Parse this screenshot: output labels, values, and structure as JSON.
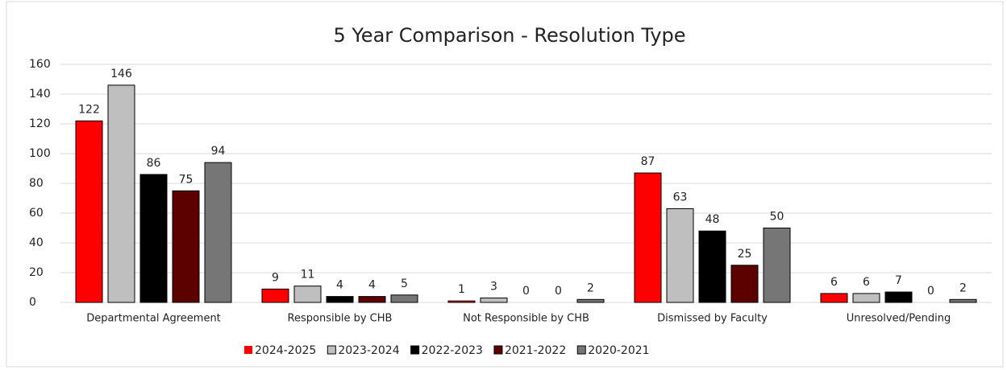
{
  "chart_data": {
    "type": "bar",
    "title": "5 Year Comparison - Resolution Type",
    "categories": [
      "Departmental Agreement",
      "Responsible by CHB",
      "Not Responsible by CHB",
      "Dismissed by Faculty",
      "Unresolved/Pending"
    ],
    "series": [
      {
        "name": "2024-2025",
        "color": "#ff0000",
        "values": [
          122,
          9,
          1,
          87,
          6
        ]
      },
      {
        "name": "2023-2024",
        "color": "#bfbfbf",
        "values": [
          146,
          11,
          3,
          63,
          6
        ]
      },
      {
        "name": "2022-2023",
        "color": "#000000",
        "values": [
          86,
          4,
          0,
          48,
          7
        ]
      },
      {
        "name": "2021-2022",
        "color": "#5c0000",
        "values": [
          75,
          4,
          0,
          25,
          0
        ]
      },
      {
        "name": "2020-2021",
        "color": "#767676",
        "values": [
          94,
          5,
          2,
          50,
          2
        ]
      }
    ],
    "ylim": [
      0,
      160
    ],
    "yticks": [
      0,
      20,
      40,
      60,
      80,
      100,
      120,
      140,
      160
    ],
    "grid": true,
    "legend": "bottom"
  }
}
